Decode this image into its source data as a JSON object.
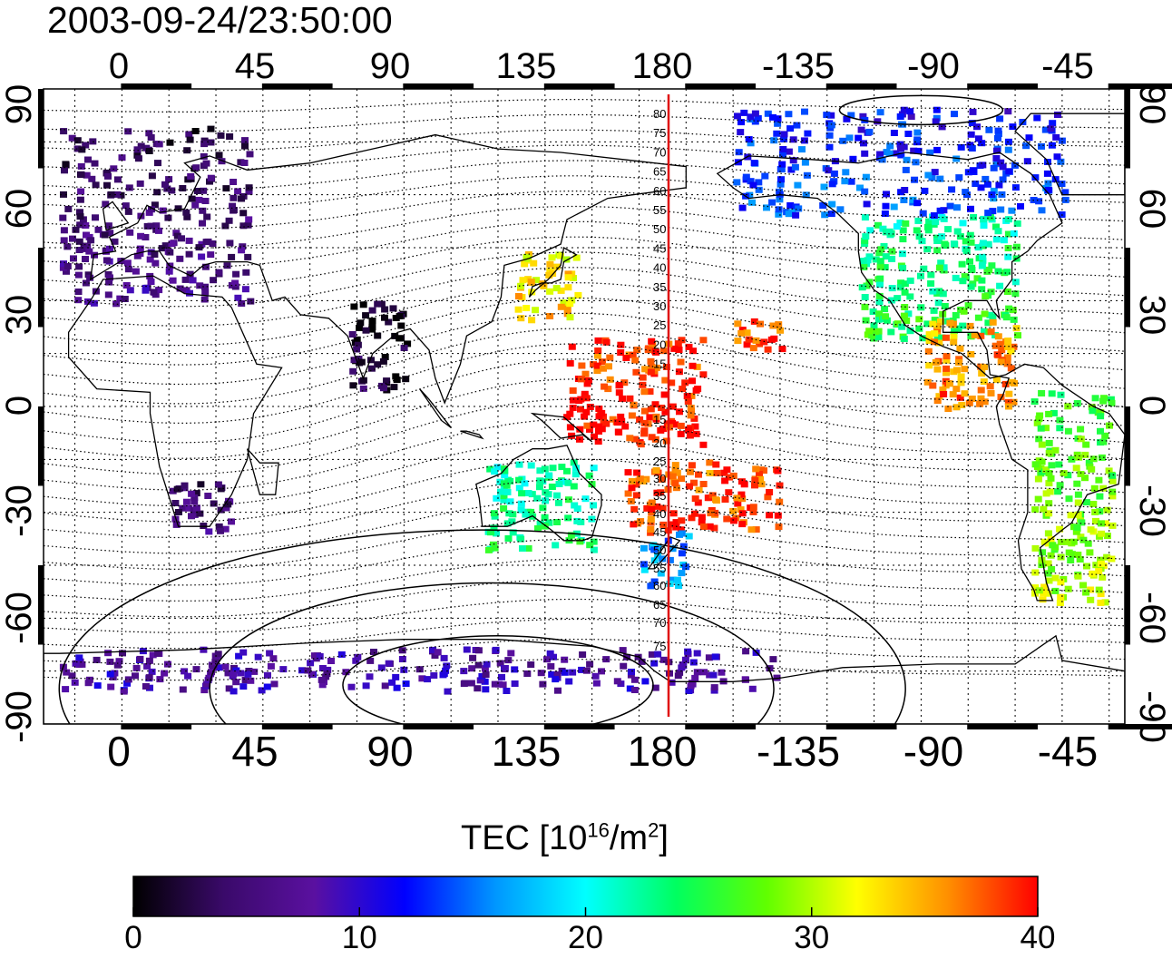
{
  "title": "2003-09-24/23:50:00",
  "top_longitude_labels": [
    "0",
    "45",
    "90",
    "135",
    "180",
    "-135",
    "-90",
    "-45"
  ],
  "bottom_longitude_labels": [
    "0",
    "45",
    "90",
    "135",
    "180",
    "-135",
    "-90",
    "-45"
  ],
  "left_latitude_labels": [
    "90",
    "60",
    "30",
    "0",
    "-30",
    "-60",
    "-90"
  ],
  "right_latitude_labels": [
    "90",
    "60",
    "30",
    "0",
    "-30",
    "-60",
    "-90"
  ],
  "dip_latitude_labels": [
    "80",
    "75",
    "70",
    "65",
    "60",
    "55",
    "50",
    "45",
    "40",
    "35",
    "30",
    "25",
    "20",
    "15",
    "15",
    "20",
    "25",
    "30",
    "35",
    "40",
    "45",
    "50",
    "55",
    "60",
    "65",
    "70",
    "75"
  ],
  "colorbar": {
    "title_prefix": "TEC  [10",
    "title_exp1": "16",
    "title_mid": "/m",
    "title_exp2": "2",
    "title_suffix": "]",
    "min": 0,
    "max": 40,
    "tick_labels": [
      "0",
      "10",
      "20",
      "30",
      "40"
    ],
    "stops": [
      "#000000",
      "#3a0a6a",
      "#5a10a0",
      "#0000ff",
      "#0096ff",
      "#00ffff",
      "#00ff60",
      "#60ff00",
      "#ffff00",
      "#ff9000",
      "#ff0000"
    ]
  },
  "colors": {
    "meridian_marker": "#e01010",
    "coastline": "#000000"
  },
  "map": {
    "lon_left_edge": -25,
    "lon_right_edge": 320,
    "lat_range": [
      -90,
      90
    ],
    "central_meridian_marker_lon": 182
  },
  "tec_regions": [
    {
      "name": "europe",
      "lon": [
        -20,
        40
      ],
      "lat": [
        30,
        80
      ],
      "tec": 5
    },
    {
      "name": "north-america",
      "lon": [
        235,
        285
      ],
      "lat": [
        20,
        55
      ],
      "tec": 24
    },
    {
      "name": "alaska-canada",
      "lon": [
        195,
        300
      ],
      "lat": [
        55,
        85
      ],
      "tec": 13
    },
    {
      "name": "japan",
      "lon": [
        125,
        145
      ],
      "lat": [
        25,
        45
      ],
      "tec": 33
    },
    {
      "name": "pacific-south",
      "lon": [
        160,
        210
      ],
      "lat": [
        -35,
        -15
      ],
      "tec": 38
    },
    {
      "name": "australia",
      "lon": [
        115,
        150
      ],
      "lat": [
        -40,
        -15
      ],
      "tec": 23
    },
    {
      "name": "new-zealand",
      "lon": [
        165,
        180
      ],
      "lat": [
        -50,
        -35
      ],
      "tec": 16
    },
    {
      "name": "south-america",
      "lon": [
        290,
        315
      ],
      "lat": [
        -55,
        5
      ],
      "tec": 28
    },
    {
      "name": "south-africa",
      "lon": [
        15,
        35
      ],
      "lat": [
        -35,
        -20
      ],
      "tec": 5
    },
    {
      "name": "antarctica",
      "lon": [
        -20,
        210
      ],
      "lat": [
        -80,
        -68
      ],
      "tec": 8
    },
    {
      "name": "india",
      "lon": [
        72,
        90
      ],
      "lat": [
        5,
        30
      ],
      "tec": 2
    },
    {
      "name": "hawaii",
      "lon": [
        195,
        210
      ],
      "lat": [
        17,
        25
      ],
      "tec": 38
    },
    {
      "name": "central-america",
      "lon": [
        255,
        285
      ],
      "lat": [
        0,
        25
      ],
      "tec": 36
    },
    {
      "name": "tropical-pacific",
      "lon": [
        140,
        185
      ],
      "lat": [
        -10,
        20
      ],
      "tec": 39
    }
  ]
}
